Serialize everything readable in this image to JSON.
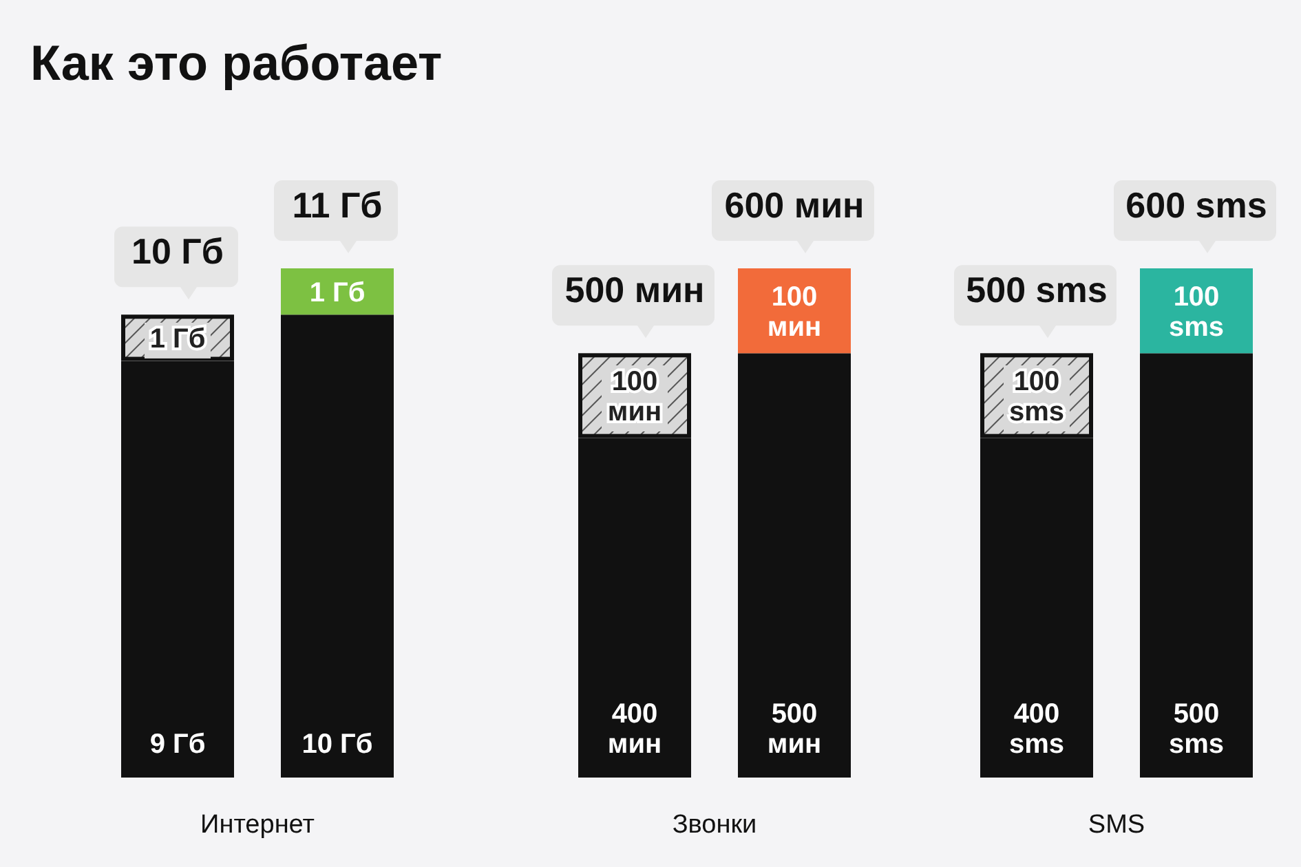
{
  "chart_data": [
    {
      "type": "bar",
      "stacked": true,
      "title": "Как это работает",
      "xlabel": "Интернет",
      "categories": [
        null,
        null
      ],
      "series": [
        {
          "color": "#111111",
          "values": [
            9,
            10
          ],
          "value_labels": [
            "9 Гб",
            "10 Гб"
          ]
        },
        {
          "colors": [
            "#d9d9d9",
            "#7dc142"
          ],
          "values": [
            1,
            1
          ],
          "value_labels": [
            "1 Гб",
            "1 Гб"
          ]
        }
      ],
      "totals": [
        "10 Гб",
        "11 Гб"
      ]
    },
    {
      "type": "bar",
      "stacked": true,
      "xlabel": "Звонки",
      "categories": [
        null,
        null
      ],
      "series": [
        {
          "color": "#111111",
          "values": [
            400,
            500
          ],
          "value_labels": [
            "400 мин",
            "500 мин"
          ]
        },
        {
          "colors": [
            "#d9d9d9",
            "#f26b3a"
          ],
          "values": [
            100,
            100
          ],
          "value_labels": [
            "100 мин",
            "100 мин"
          ]
        }
      ],
      "totals": [
        "500 мин",
        "600 мин"
      ]
    },
    {
      "type": "bar",
      "stacked": true,
      "xlabel": "SMS",
      "categories": [
        null,
        null
      ],
      "series": [
        {
          "color": "#111111",
          "values": [
            400,
            500
          ],
          "value_labels": [
            "400 sms",
            "500 sms"
          ]
        },
        {
          "colors": [
            "#d9d9d9",
            "#2bb5a0"
          ],
          "values": [
            100,
            100
          ],
          "value_labels": [
            "100 sms",
            "100 sms"
          ]
        }
      ],
      "totals": [
        "500 sms",
        "600 sms"
      ]
    }
  ]
}
